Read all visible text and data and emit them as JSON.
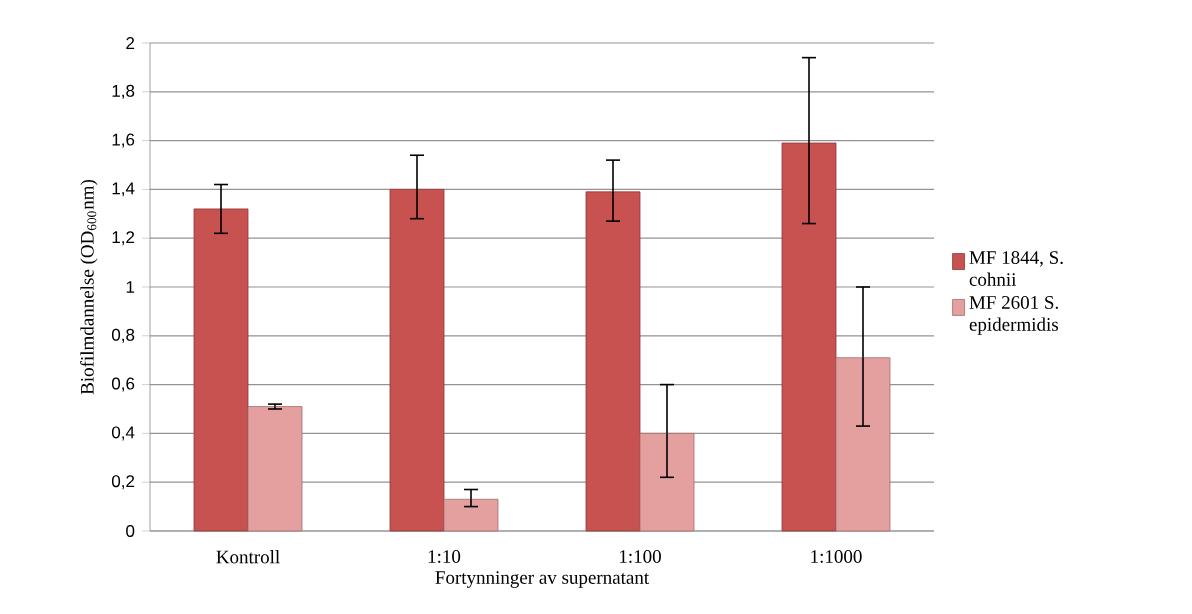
{
  "chart_data": {
    "type": "bar",
    "xlabel": "Fortynninger av supernatant",
    "ylabel": "Biofilmdannelse (OD$_{600}$nm)",
    "categories": [
      "Kontroll",
      "1:10",
      "1:100",
      "1:1000"
    ],
    "series": [
      {
        "name": "MF 1844, S. cohnii",
        "color": "#c85250",
        "values": [
          1.32,
          1.4,
          1.39,
          1.59
        ],
        "errors": [
          [
            1.22,
            1.42
          ],
          [
            1.28,
            1.54
          ],
          [
            1.27,
            1.52
          ],
          [
            1.26,
            1.94
          ]
        ]
      },
      {
        "name": "MF 2601 S. epidermidis",
        "color": "#e4a09f",
        "values": [
          0.51,
          0.13,
          0.4,
          0.71
        ],
        "errors": [
          [
            0.5,
            0.52
          ],
          [
            0.1,
            0.17
          ],
          [
            0.22,
            0.6
          ],
          [
            0.43,
            1.0
          ]
        ]
      }
    ],
    "ylim": [
      0,
      2
    ],
    "yticks": [
      0,
      {
        "value": 0.2,
        "label": "0,2"
      },
      {
        "value": 0.4,
        "label": "0,4"
      },
      {
        "value": 0.6,
        "label": "0,6"
      },
      {
        "value": 0.8,
        "label": "0,8"
      },
      1,
      {
        "value": 1.2,
        "label": "1,2"
      },
      {
        "value": 1.4,
        "label": "1,4"
      },
      {
        "value": 1.6,
        "label": "1,6"
      },
      {
        "value": 1.8,
        "label": "1,8"
      },
      2
    ],
    "grid": "y",
    "legend": "right"
  }
}
